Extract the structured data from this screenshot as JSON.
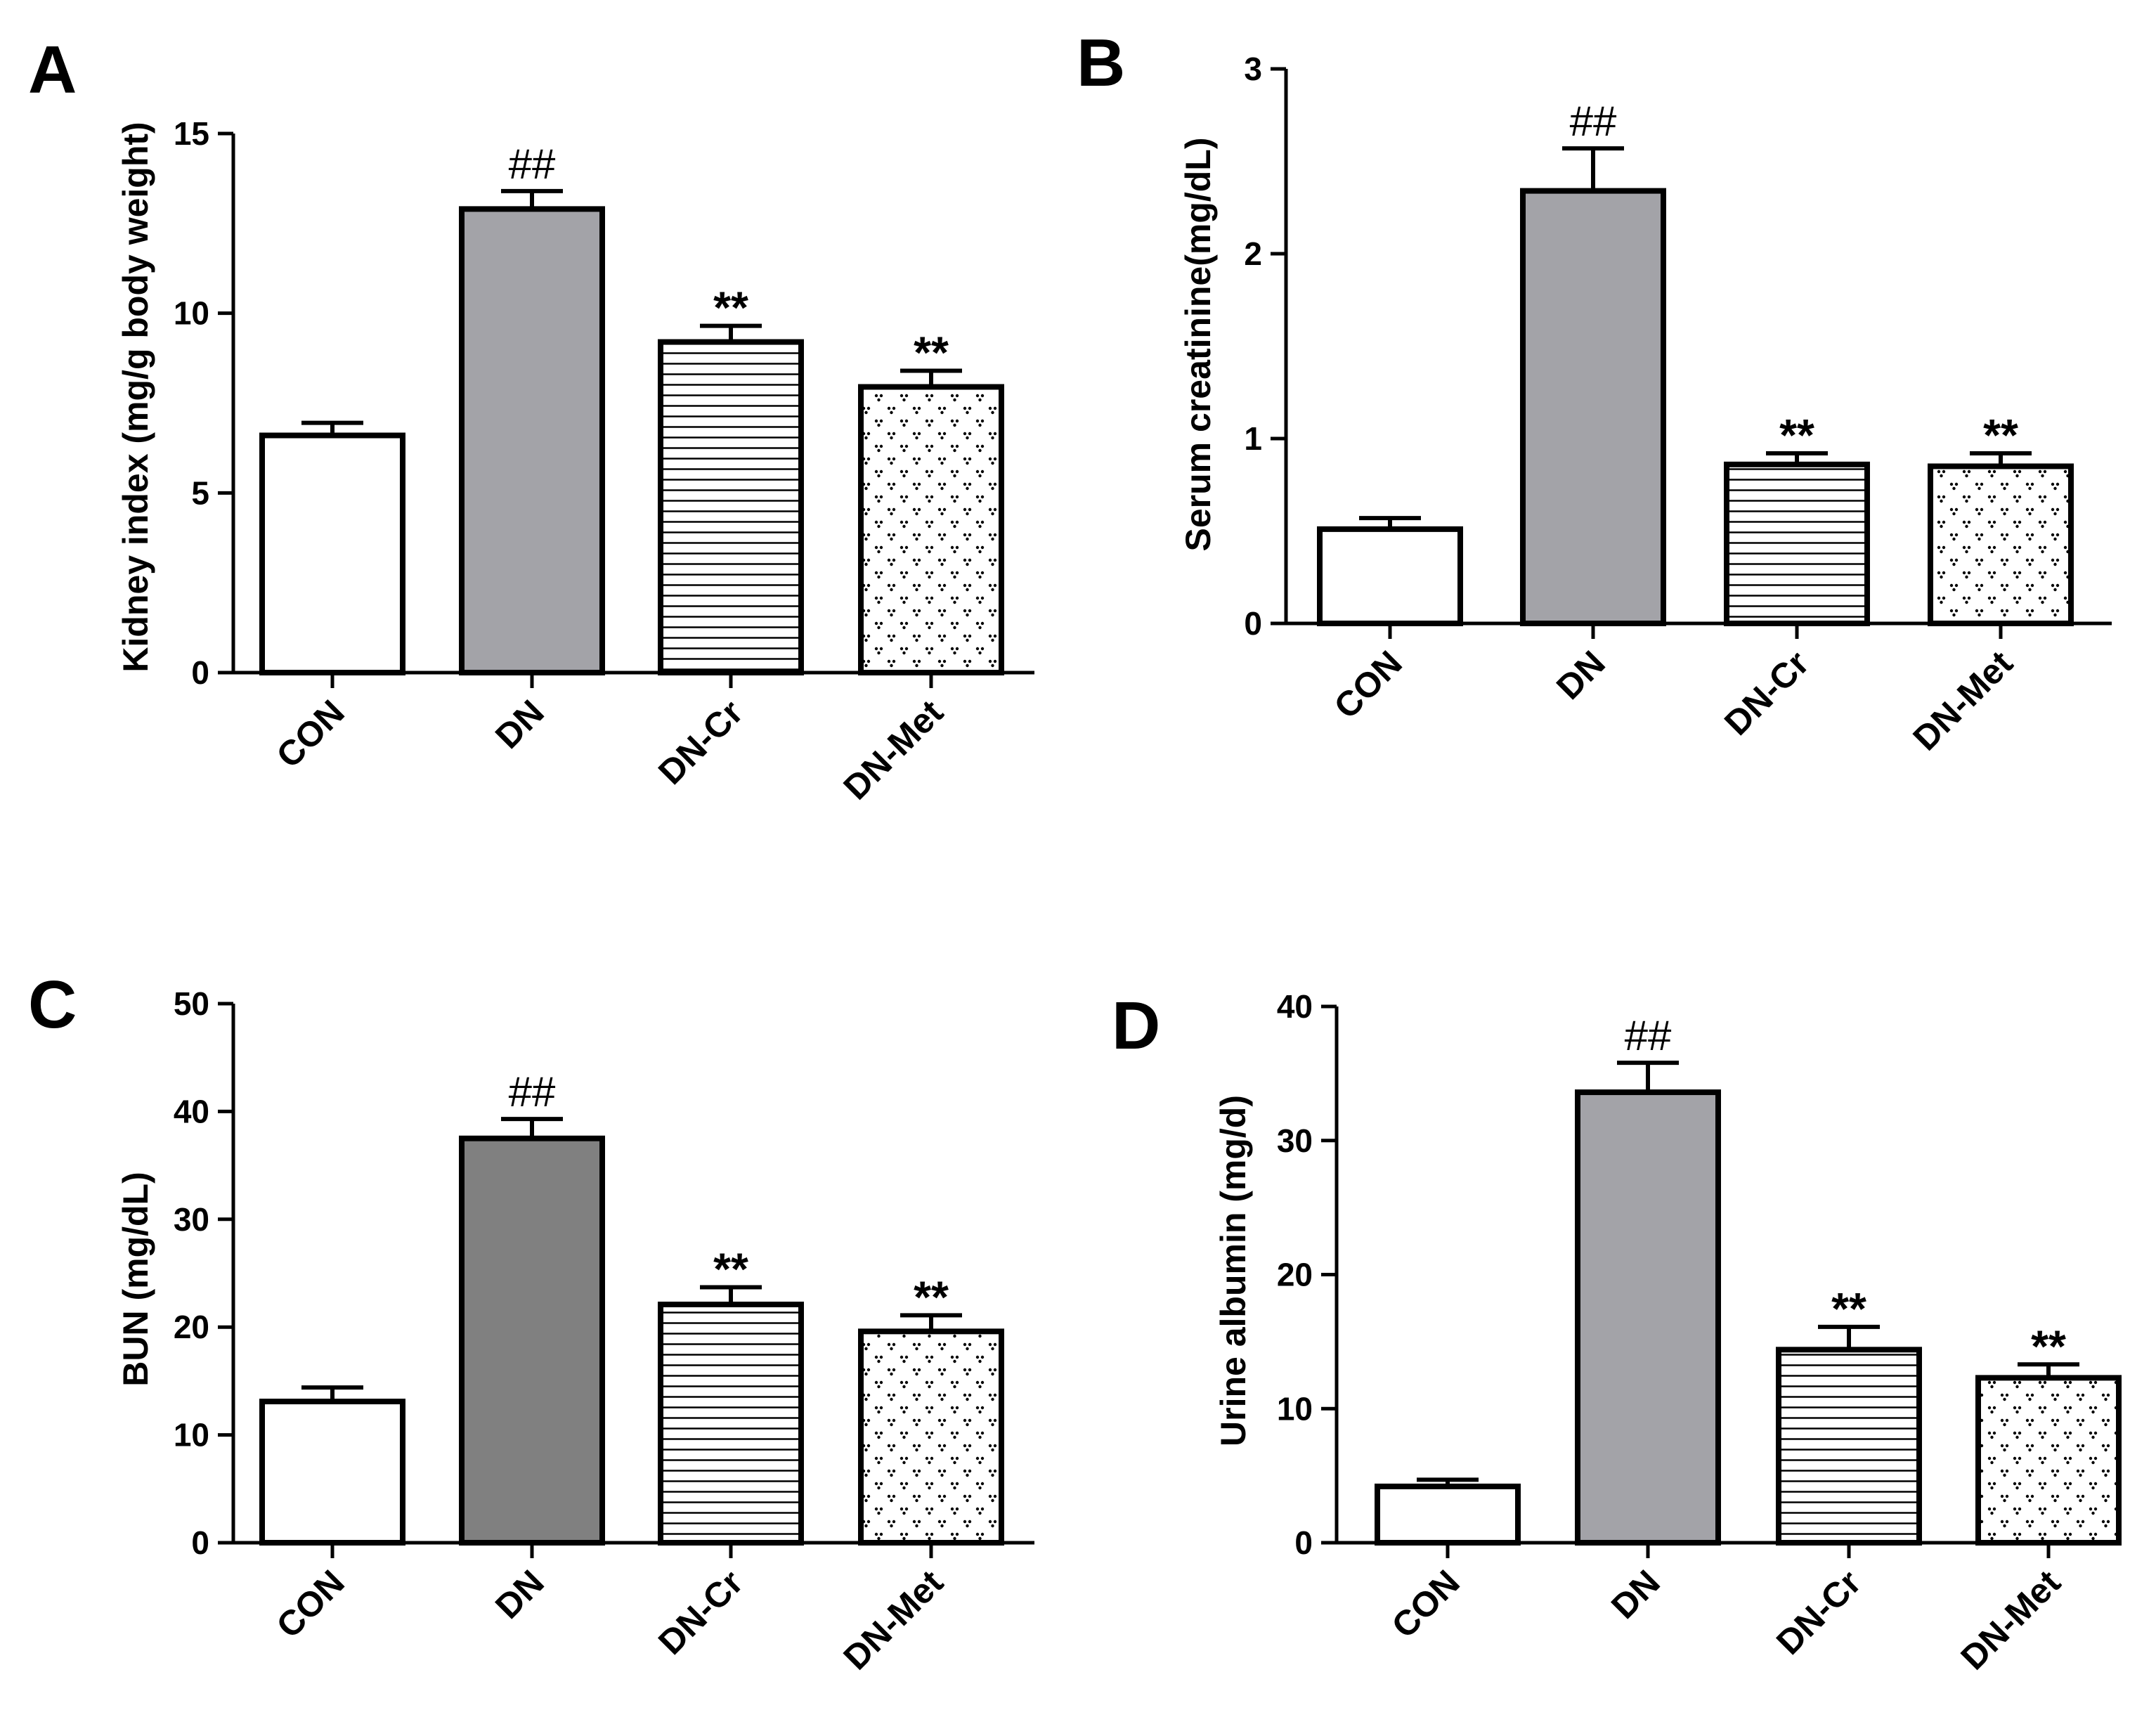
{
  "chart_data": [
    {
      "panel": "A",
      "type": "bar",
      "ylabel": "Kidney index (mg/g body weight)",
      "xlabel": "",
      "ylim": [
        0,
        15
      ],
      "yticks": [
        0,
        5,
        10,
        15
      ],
      "categories": [
        "CON",
        "DN",
        "DN-Cr",
        "DN-Met"
      ],
      "values": [
        6.6,
        12.9,
        9.2,
        7.95
      ],
      "errors": [
        0.35,
        0.5,
        0.45,
        0.45
      ],
      "annotations": [
        "",
        "##",
        "**",
        "**"
      ],
      "fills": [
        "white",
        "#a3a3a8",
        "hlines",
        "dots"
      ]
    },
    {
      "panel": "B",
      "type": "bar",
      "ylabel": "Serum creatinine(mg/dL)",
      "xlabel": "",
      "ylim": [
        0,
        3
      ],
      "yticks": [
        0,
        1,
        2,
        3
      ],
      "categories": [
        "CON",
        "DN",
        "DN-Cr",
        "DN-Met"
      ],
      "values": [
        0.51,
        2.34,
        0.86,
        0.85
      ],
      "errors": [
        0.06,
        0.23,
        0.06,
        0.07
      ],
      "annotations": [
        "",
        "##",
        "**",
        "**"
      ],
      "fills": [
        "white",
        "#a3a3a8",
        "hlines",
        "dots"
      ]
    },
    {
      "panel": "C",
      "type": "bar",
      "ylabel": "BUN (mg/dL)",
      "xlabel": "",
      "ylim": [
        0,
        50
      ],
      "yticks": [
        0,
        10,
        20,
        30,
        40,
        50
      ],
      "categories": [
        "CON",
        "DN",
        "DN-Cr",
        "DN-Met"
      ],
      "values": [
        13.1,
        37.5,
        22.1,
        19.6
      ],
      "errors": [
        1.3,
        1.8,
        1.6,
        1.5
      ],
      "annotations": [
        "",
        "##",
        "**",
        "**"
      ],
      "fills": [
        "white",
        "#808080",
        "hlines",
        "dots"
      ]
    },
    {
      "panel": "D",
      "type": "bar",
      "ylabel": "Urine albumin (mg/d)",
      "xlabel": "",
      "ylim": [
        0,
        40
      ],
      "yticks": [
        0,
        10,
        20,
        30,
        40
      ],
      "categories": [
        "CON",
        "DN",
        "DN-Cr",
        "DN-Met"
      ],
      "values": [
        4.2,
        33.6,
        14.4,
        12.3
      ],
      "errors": [
        0.5,
        2.2,
        1.7,
        1.0
      ],
      "annotations": [
        "",
        "##",
        "**",
        "**"
      ],
      "fills": [
        "white",
        "#a3a3a8",
        "hlines",
        "dots"
      ]
    }
  ]
}
